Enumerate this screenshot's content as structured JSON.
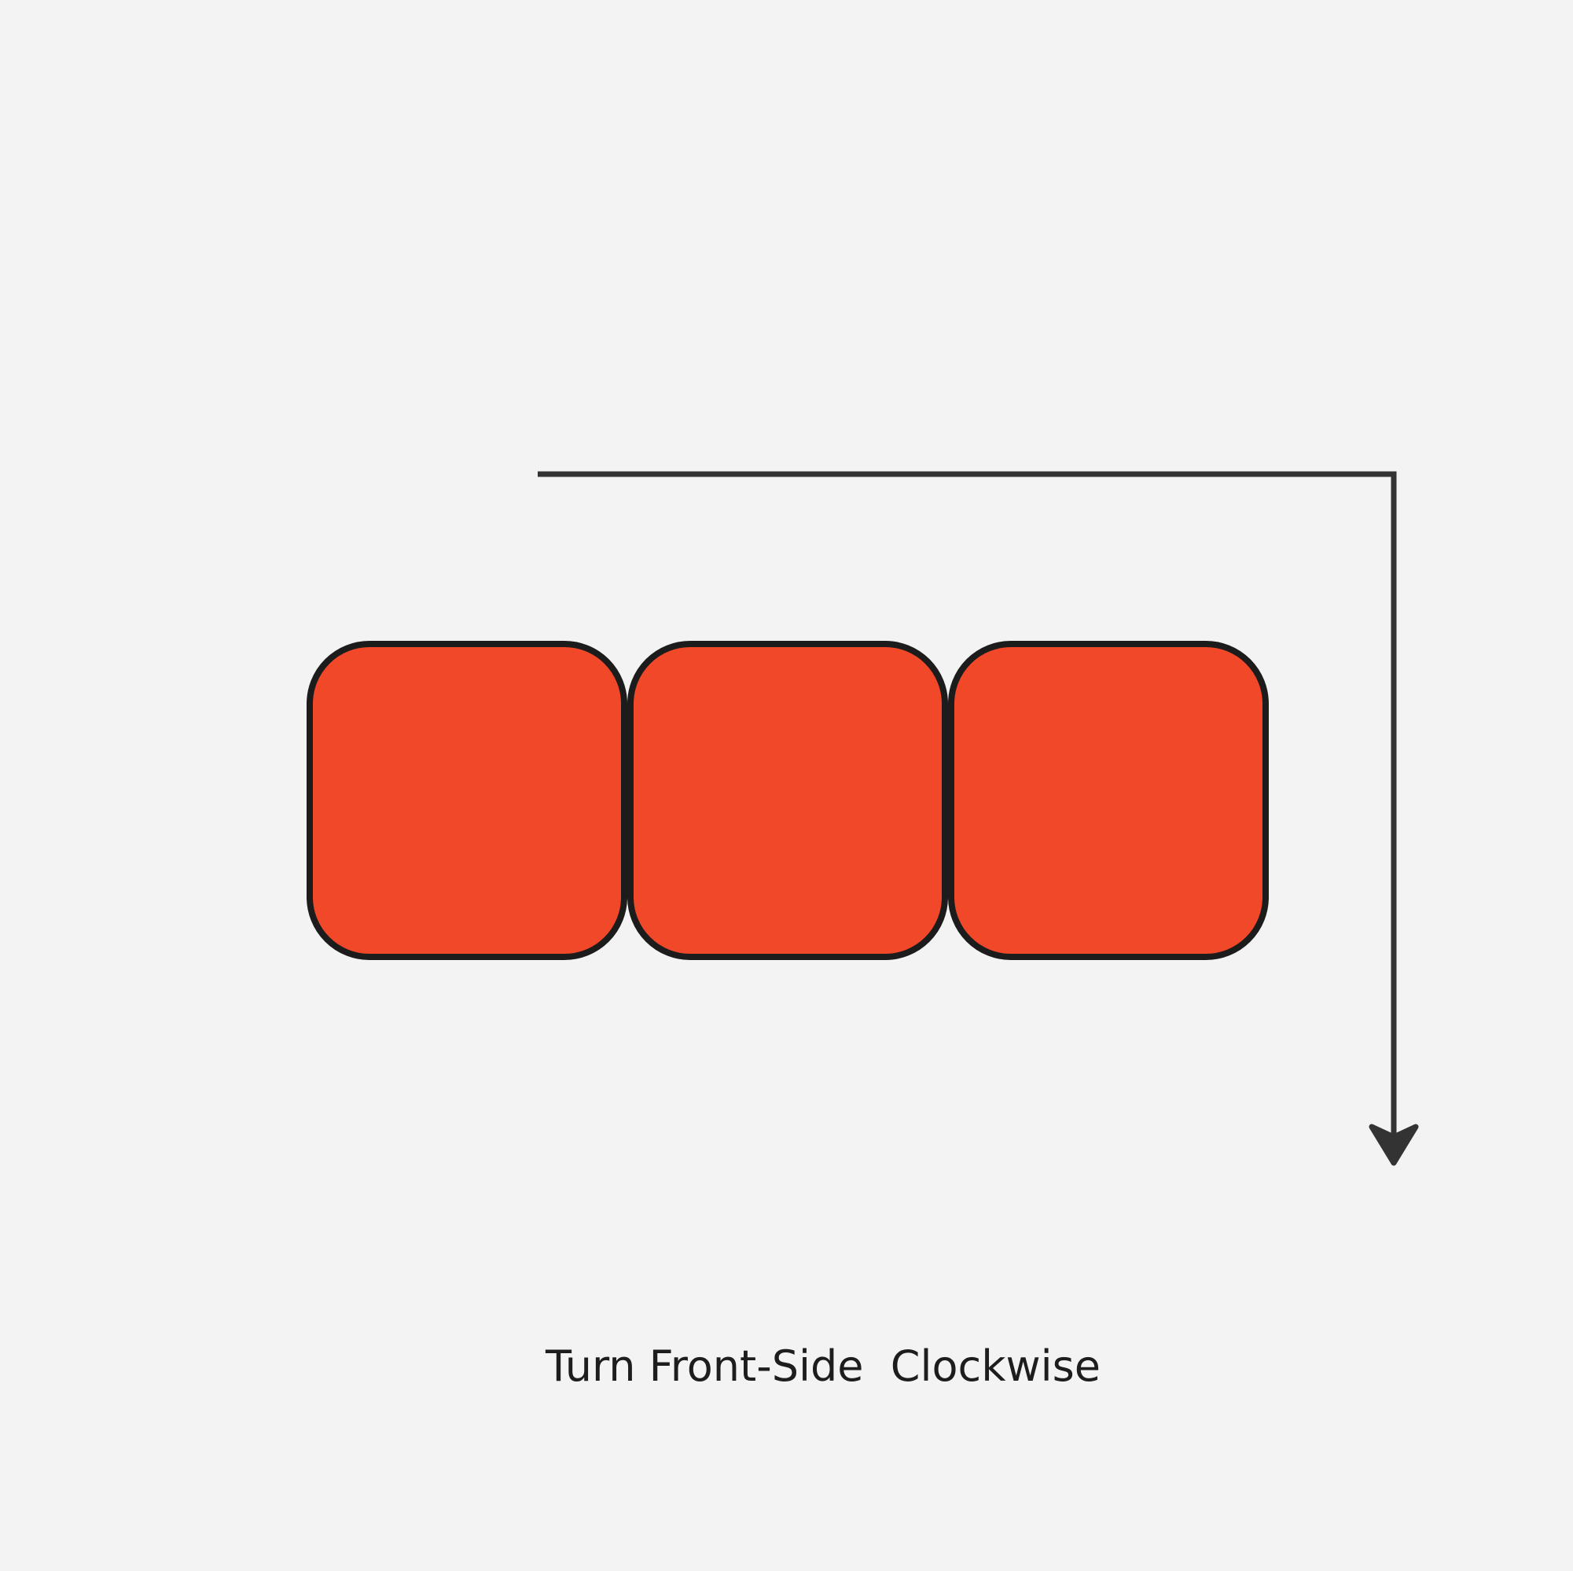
{
  "diagram": {
    "caption": "Turn Front-Side  Clockwise",
    "tile_count": 3,
    "colors": {
      "background": "#f3f3f3",
      "tile_fill": "#f04828",
      "tile_stroke": "#1c1c1c",
      "arrow": "#333333",
      "text": "#1d1d1d"
    },
    "icons": [
      "clockwise-turn-arrow-icon"
    ]
  }
}
